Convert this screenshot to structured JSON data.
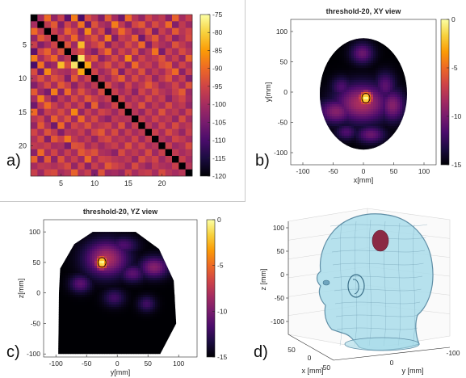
{
  "colors": {
    "cmap": [
      "#000004",
      "#1b0c41",
      "#4a0c6b",
      "#781c6d",
      "#a52c60",
      "#cf4446",
      "#ed6925",
      "#fb9b06",
      "#f7d13d",
      "#fcffa4"
    ],
    "head_fill": "#a9dcea",
    "head_stroke": "#5f8ea6",
    "blob": "#8b2a44",
    "axis": "#262626"
  },
  "panels": {
    "a": {
      "label": "a)"
    },
    "b": {
      "label": "b)"
    },
    "c": {
      "label": "c)"
    },
    "d": {
      "label": "d)"
    }
  },
  "chart_data": [
    {
      "panel": "a",
      "type": "heatmap",
      "title": "",
      "n": 24,
      "xticks": [
        5,
        10,
        15,
        20
      ],
      "yticks": [
        5,
        10,
        15,
        20
      ],
      "colorbar": {
        "range": [
          -120,
          -75
        ],
        "ticks": [
          -75,
          -80,
          -85,
          -90,
          -95,
          -100,
          -105,
          -110,
          -115,
          -120
        ]
      },
      "diagonal_value": -120,
      "values": [
        [
          -120,
          -100,
          -90,
          -102,
          -96,
          -108,
          -88,
          -110,
          -94,
          -98,
          -104,
          -92,
          -100,
          -106,
          -90,
          -98,
          -102,
          -95,
          -99,
          -97,
          -103,
          -91,
          -100,
          -96
        ],
        [
          -100,
          -120,
          -97,
          -92,
          -104,
          -95,
          -100,
          -89,
          -106,
          -93,
          -99,
          -101,
          -88,
          -97,
          -103,
          -95,
          -92,
          -100,
          -94,
          -98,
          -90,
          -104,
          -97,
          -101
        ],
        [
          -90,
          -97,
          -120,
          -96,
          -100,
          -91,
          -95,
          -103,
          -87,
          -99,
          -94,
          -105,
          -98,
          -90,
          -96,
          -102,
          -99,
          -93,
          -104,
          -96,
          -100,
          -92,
          -98,
          -95
        ],
        [
          -102,
          -92,
          -96,
          -120,
          -95,
          -99,
          -90,
          -101,
          -97,
          -93,
          -100,
          -88,
          -104,
          -96,
          -98,
          -91,
          -106,
          -97,
          -92,
          -100,
          -95,
          -103,
          -99,
          -94
        ],
        [
          -96,
          -104,
          -100,
          -95,
          -120,
          -93,
          -101,
          -82,
          -99,
          -96,
          -92,
          -103,
          -97,
          -100,
          -94,
          -98,
          -90,
          -104,
          -96,
          -99,
          -101,
          -93,
          -97,
          -100
        ],
        [
          -108,
          -95,
          -91,
          -99,
          -93,
          -120,
          -97,
          -94,
          -100,
          -104,
          -96,
          -90,
          -101,
          -95,
          -99,
          -93,
          -102,
          -98,
          -89,
          -105,
          -96,
          -100,
          -94,
          -98
        ],
        [
          -88,
          -100,
          -95,
          -90,
          -101,
          -97,
          -120,
          -78,
          -96,
          -92,
          -103,
          -99,
          -94,
          -100,
          -87,
          -101,
          -95,
          -99,
          -97,
          -93,
          -100,
          -96,
          -102,
          -91
        ],
        [
          -110,
          -89,
          -103,
          -101,
          -82,
          -94,
          -78,
          -120,
          -84,
          -100,
          -97,
          -93,
          -99,
          -95,
          -102,
          -90,
          -98,
          -96,
          -100,
          -94,
          -92,
          -101,
          -95,
          -99
        ],
        [
          -94,
          -106,
          -87,
          -97,
          -99,
          -100,
          -96,
          -84,
          -120,
          -95,
          -101,
          -98,
          -92,
          -104,
          -96,
          -99,
          -93,
          -101,
          -97,
          -100,
          -95,
          -90,
          -103,
          -96
        ],
        [
          -98,
          -93,
          -99,
          -93,
          -96,
          -104,
          -92,
          -100,
          -95,
          -120,
          -97,
          -101,
          -96,
          -91,
          -100,
          -94,
          -99,
          -95,
          -102,
          -97,
          -93,
          -100,
          -96,
          -104
        ],
        [
          -104,
          -99,
          -94,
          -100,
          -92,
          -96,
          -103,
          -97,
          -101,
          -97,
          -120,
          -94,
          -99,
          -102,
          -95,
          -100,
          -97,
          -92,
          -96,
          -101,
          -99,
          -95,
          -100,
          -93
        ],
        [
          -92,
          -101,
          -105,
          -88,
          -103,
          -90,
          -99,
          -93,
          -98,
          -101,
          -94,
          -120,
          -96,
          -100,
          -97,
          -103,
          -95,
          -99,
          -94,
          -98,
          -100,
          -96,
          -92,
          -101
        ],
        [
          -100,
          -88,
          -98,
          -104,
          -97,
          -101,
          -94,
          -99,
          -92,
          -96,
          -99,
          -96,
          -120,
          -95,
          -101,
          -97,
          -100,
          -94,
          -99,
          -96,
          -103,
          -98,
          -95,
          -100
        ],
        [
          -106,
          -97,
          -90,
          -96,
          -100,
          -95,
          -100,
          -95,
          -104,
          -91,
          -102,
          -100,
          -95,
          -120,
          -96,
          -99,
          -93,
          -101,
          -97,
          -100,
          -94,
          -99,
          -97,
          -102
        ],
        [
          -90,
          -103,
          -96,
          -98,
          -94,
          -99,
          -87,
          -102,
          -96,
          -100,
          -95,
          -97,
          -101,
          -96,
          -120,
          -98,
          -102,
          -96,
          -100,
          -93,
          -99,
          -97,
          -101,
          -95
        ],
        [
          -98,
          -95,
          -102,
          -91,
          -98,
          -93,
          -101,
          -90,
          -99,
          -94,
          -100,
          -103,
          -97,
          -99,
          -98,
          -120,
          -96,
          -100,
          -95,
          -99,
          -97,
          -102,
          -94,
          -100
        ],
        [
          -102,
          -92,
          -99,
          -106,
          -90,
          -102,
          -95,
          -98,
          -93,
          -99,
          -97,
          -95,
          -100,
          -93,
          -102,
          -96,
          -120,
          -97,
          -101,
          -95,
          -100,
          -94,
          -99,
          -97
        ],
        [
          -95,
          -100,
          -93,
          -97,
          -104,
          -98,
          -99,
          -96,
          -101,
          -95,
          -92,
          -99,
          -94,
          -101,
          -96,
          -100,
          -97,
          -120,
          -96,
          -100,
          -94,
          -98,
          -102,
          -96
        ],
        [
          -99,
          -94,
          -104,
          -92,
          -96,
          -89,
          -97,
          -100,
          -97,
          -102,
          -96,
          -94,
          -99,
          -97,
          -100,
          -95,
          -101,
          -96,
          -120,
          -98,
          -101,
          -95,
          -97,
          -100
        ],
        [
          -97,
          -98,
          -96,
          -100,
          -99,
          -105,
          -93,
          -94,
          -100,
          -97,
          -101,
          -98,
          -96,
          -100,
          -93,
          -99,
          -95,
          -100,
          -98,
          -120,
          -96,
          -101,
          -99,
          -94
        ],
        [
          -103,
          -90,
          -100,
          -95,
          -101,
          -96,
          -100,
          -92,
          -95,
          -93,
          -99,
          -100,
          -103,
          -94,
          -99,
          -97,
          -100,
          -94,
          -101,
          -96,
          -120,
          -97,
          -100,
          -98
        ],
        [
          -91,
          -104,
          -92,
          -103,
          -93,
          -100,
          -96,
          -101,
          -90,
          -100,
          -95,
          -96,
          -98,
          -99,
          -97,
          -102,
          -94,
          -98,
          -95,
          -101,
          -97,
          -120,
          -96,
          -100
        ],
        [
          -100,
          -97,
          -98,
          -99,
          -97,
          -94,
          -102,
          -95,
          -103,
          -96,
          -100,
          -92,
          -95,
          -97,
          -101,
          -94,
          -99,
          -102,
          -97,
          -99,
          -100,
          -96,
          -120,
          -98
        ],
        [
          -96,
          -101,
          -95,
          -94,
          -100,
          -98,
          -91,
          -99,
          -96,
          -104,
          -93,
          -101,
          -100,
          -102,
          -95,
          -100,
          -97,
          -96,
          -100,
          -94,
          -98,
          -100,
          -98,
          -120
        ]
      ]
    },
    {
      "panel": "b",
      "type": "heatmap",
      "title": "threshold-20, XY view",
      "xlabel": "x[mm]",
      "ylabel": "y[mm]",
      "xlim": [
        -120,
        120
      ],
      "ylim": [
        -120,
        120
      ],
      "xticks": [
        -100,
        -50,
        0,
        50,
        100
      ],
      "yticks": [
        100,
        50,
        0,
        -50,
        -100
      ],
      "colorbar": {
        "range": [
          -15,
          0
        ],
        "ticks": [
          0,
          -5,
          -10,
          -15
        ]
      },
      "head_outline": {
        "cx": 0,
        "cy": -3,
        "rx": 72,
        "ry": 92
      },
      "sources": [
        {
          "x": 4,
          "y": -10,
          "sx": 9,
          "sy": 9,
          "v": 0
        },
        {
          "x": -2,
          "y": -18,
          "sx": 30,
          "sy": 22,
          "v": -8
        },
        {
          "x": -45,
          "y": -32,
          "sx": 20,
          "sy": 14,
          "v": -9.5
        },
        {
          "x": 48,
          "y": -22,
          "sx": 14,
          "sy": 18,
          "v": -9.5
        },
        {
          "x": -2,
          "y": 64,
          "sx": 13,
          "sy": 12,
          "v": -10.5
        },
        {
          "x": 36,
          "y": 10,
          "sx": 12,
          "sy": 16,
          "v": -11
        },
        {
          "x": -36,
          "y": 8,
          "sx": 12,
          "sy": 12,
          "v": -11.5
        },
        {
          "x": 12,
          "y": -70,
          "sx": 16,
          "sy": 10,
          "v": -10.5
        },
        {
          "x": -28,
          "y": -66,
          "sx": 12,
          "sy": 9,
          "v": -11.5
        }
      ]
    },
    {
      "panel": "c",
      "type": "heatmap",
      "title": "threshold-20, YZ view",
      "xlabel": "y[mm]",
      "ylabel": "z[mm]",
      "xlim": [
        -120,
        130
      ],
      "ylim": [
        -105,
        120
      ],
      "xticks": [
        -100,
        -50,
        0,
        50,
        100
      ],
      "yticks": [
        100,
        50,
        0,
        -50,
        -100
      ],
      "colorbar": {
        "range": [
          -15,
          0
        ],
        "ticks": [
          0,
          -5,
          -10,
          -15
        ]
      },
      "head_outline": [
        [
          -95,
          0
        ],
        [
          -96,
          -100
        ],
        [
          -82,
          -100
        ],
        [
          70,
          -100
        ],
        [
          96,
          -50
        ],
        [
          92,
          20
        ],
        [
          68,
          72
        ],
        [
          30,
          100
        ],
        [
          -40,
          100
        ],
        [
          -70,
          80
        ],
        [
          -93,
          40
        ]
      ],
      "sources": [
        {
          "x": -25,
          "y": 50,
          "sx": 8,
          "sy": 9,
          "v": 0
        },
        {
          "x": -18,
          "y": 56,
          "sx": 24,
          "sy": 20,
          "v": -8
        },
        {
          "x": 60,
          "y": 42,
          "sx": 16,
          "sy": 12,
          "v": -9.5
        },
        {
          "x": 25,
          "y": 32,
          "sx": 14,
          "sy": 10,
          "v": -11
        },
        {
          "x": -60,
          "y": 15,
          "sx": 12,
          "sy": 10,
          "v": -11
        },
        {
          "x": -5,
          "y": -8,
          "sx": 12,
          "sy": 10,
          "v": -12
        },
        {
          "x": 10,
          "y": 78,
          "sx": 16,
          "sy": 10,
          "v": -11.5
        },
        {
          "x": 48,
          "y": -18,
          "sx": 10,
          "sy": 9,
          "v": -12
        }
      ]
    },
    {
      "panel": "d",
      "type": "scatter",
      "title": "",
      "xlabel": "x [mm]",
      "ylabel": "y [mm]",
      "zlabel": "z [mm]",
      "zticks": [
        100,
        50,
        0,
        -50,
        -100
      ],
      "xticks": [
        50,
        0,
        -50
      ],
      "yticks": [
        0,
        -100
      ]
    }
  ]
}
